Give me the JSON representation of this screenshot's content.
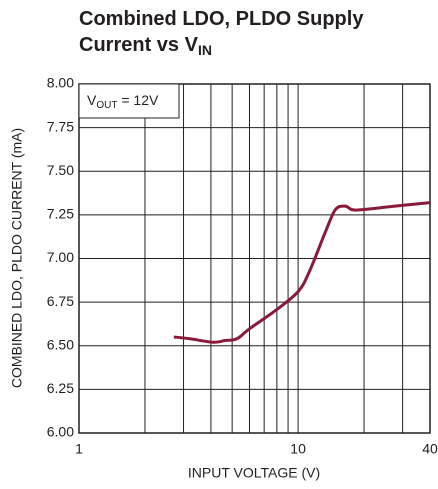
{
  "chart_data": {
    "type": "line",
    "title_lines": [
      "Combined LDO, PLDO Supply",
      "Current vs V"
    ],
    "title_sub": "IN",
    "annotation": {
      "main": "V",
      "sub": "OUT",
      "rest": " = 12V"
    },
    "xlabel": "INPUT VOLTAGE (V)",
    "ylabel": "COMBINED LDO, PLDO CURRENT (mA)",
    "xlog": true,
    "xlim": [
      1,
      40
    ],
    "xticks": [
      1,
      10,
      40
    ],
    "xgrid": [
      2,
      3,
      4,
      5,
      6,
      7,
      8,
      9,
      20,
      30
    ],
    "ylim": [
      6,
      8
    ],
    "yticks": [
      {
        "value": 6,
        "label": "6.00"
      },
      {
        "value": 6.25,
        "label": "6.25"
      },
      {
        "value": 6.5,
        "label": "6.50"
      },
      {
        "value": 6.75,
        "label": "6.75"
      },
      {
        "value": 7,
        "label": "7.00"
      },
      {
        "value": 7.25,
        "label": "7.25"
      },
      {
        "value": 7.5,
        "label": "7.50"
      },
      {
        "value": 7.75,
        "label": "7.75"
      },
      {
        "value": 8,
        "label": "8.00"
      }
    ],
    "grid": true,
    "series": [
      {
        "color": "#8b1a3a",
        "x": [
          2.71,
          3.21,
          4.09,
          4.64,
          5.26,
          6.04,
          7.85,
          10,
          11.3,
          13.3,
          14.8,
          16.4,
          17.6,
          19.6,
          27.7,
          40
        ],
        "values": [
          6.55,
          6.54,
          6.52,
          6.53,
          6.54,
          6.6,
          6.7,
          6.81,
          6.93,
          7.15,
          7.28,
          7.3,
          7.28,
          7.28,
          7.3,
          7.32
        ]
      }
    ]
  }
}
